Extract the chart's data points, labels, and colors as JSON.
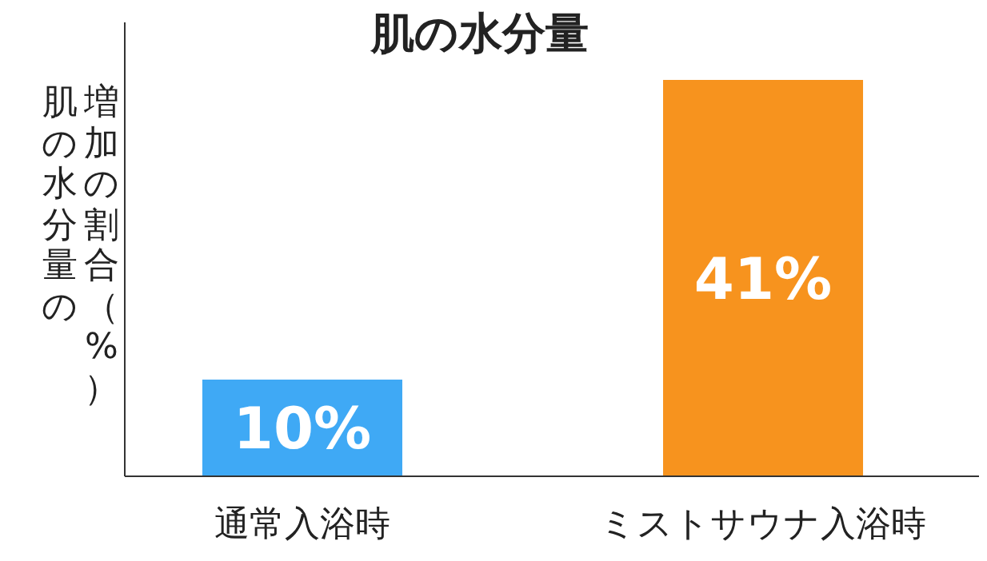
{
  "chart_data": {
    "type": "bar",
    "title": "肌の水分量",
    "ylabel": "肌の水分量の増加の割合（%）",
    "categories": [
      "通常入浴時",
      "ミストサウナ入浴時"
    ],
    "values": [
      10,
      41
    ],
    "colors": [
      "#3fa9f5",
      "#f7931e"
    ],
    "value_labels": [
      "10%",
      "41%"
    ]
  }
}
